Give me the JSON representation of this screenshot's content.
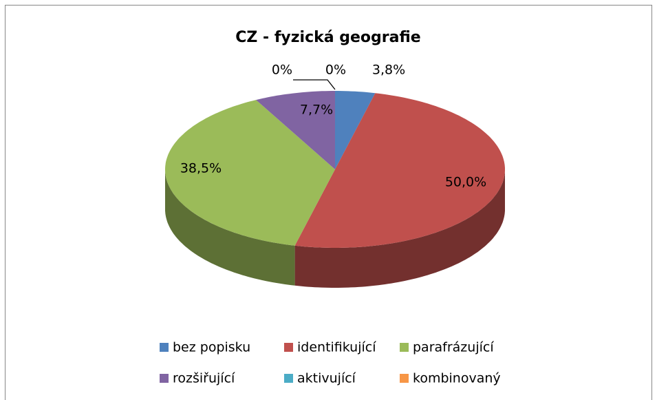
{
  "chart_data": {
    "type": "pie3d",
    "title": "CZ - fyzická geografie",
    "categories": [
      "bez popisku",
      "identifikující",
      "parafrázující",
      "rozšiřující",
      "aktivující",
      "kombinovaný"
    ],
    "values": [
      3.8,
      50.0,
      38.5,
      7.7,
      0,
      0
    ],
    "value_labels": [
      "3,8%",
      "50,0%",
      "38,5%",
      "7,7%",
      "0%",
      "0%"
    ],
    "colors": [
      "#4f81bd",
      "#c0504d",
      "#9bbb59",
      "#8064a2",
      "#4bacc6",
      "#f79646"
    ],
    "legend": "bottom"
  }
}
